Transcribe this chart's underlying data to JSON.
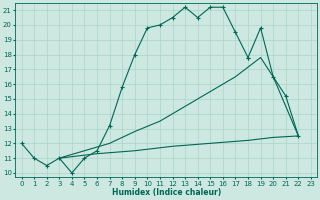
{
  "xlabel": "Humidex (Indice chaleur)",
  "bg_color": "#cce8e0",
  "grid_color": "#aad4c8",
  "line_color": "#006655",
  "xlim": [
    -0.5,
    23.5
  ],
  "ylim": [
    9.7,
    21.5
  ],
  "yticks": [
    10,
    11,
    12,
    13,
    14,
    15,
    16,
    17,
    18,
    19,
    20,
    21
  ],
  "xticks": [
    0,
    1,
    2,
    3,
    4,
    5,
    6,
    7,
    8,
    9,
    10,
    11,
    12,
    13,
    14,
    15,
    16,
    17,
    18,
    19,
    20,
    21,
    22,
    23
  ],
  "curve1_x": [
    0,
    1,
    2,
    3,
    4,
    5,
    6,
    7,
    8,
    9,
    10,
    11,
    12,
    13,
    14,
    15,
    16,
    17,
    18
  ],
  "curve1_y": [
    12,
    11,
    10.5,
    11,
    10,
    11,
    11.5,
    13.2,
    15.8,
    18,
    19.8,
    20,
    20.5,
    21.2,
    20.5,
    21.2,
    21.2,
    19.5,
    17.8
  ],
  "curve2_x": [
    0,
    1,
    2,
    3,
    4,
    5,
    6,
    7,
    8,
    9,
    10,
    11,
    12,
    13,
    14,
    15,
    16,
    17,
    18,
    19,
    20,
    21,
    22
  ],
  "curve2_y": [
    12,
    11,
    10.5,
    11,
    10,
    11,
    11.5,
    13.2,
    15.8,
    18,
    19.8,
    20,
    20.5,
    21.2,
    20.5,
    21.2,
    21.2,
    19.5,
    17.8,
    19.8,
    16.5,
    15.2,
    12.5
  ],
  "diag1_x": [
    3,
    7,
    9,
    11,
    13,
    15,
    17,
    19,
    20,
    22
  ],
  "diag1_y": [
    11,
    12.0,
    12.8,
    13.5,
    14.5,
    15.5,
    16.5,
    17.8,
    16.5,
    12.5
  ],
  "diag2_x": [
    3,
    6,
    9,
    12,
    15,
    18,
    20,
    22
  ],
  "diag2_y": [
    11,
    11.3,
    11.5,
    11.8,
    12.0,
    12.2,
    12.4,
    12.5
  ]
}
